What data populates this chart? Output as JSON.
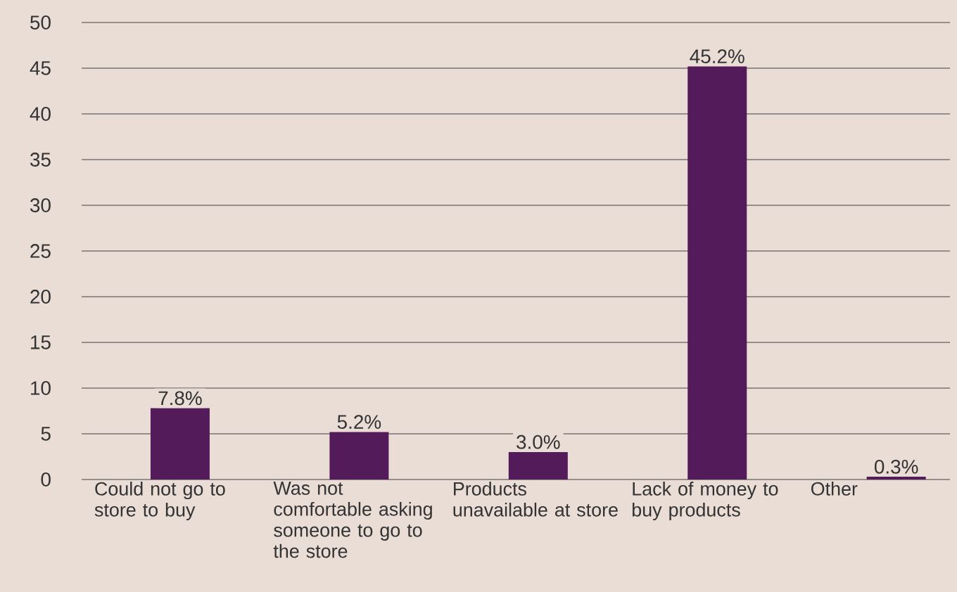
{
  "chart_data": {
    "type": "bar",
    "categories": [
      "Could not go to store to buy",
      "Was not comfortable asking someone to go to the store",
      "Products unavailable at store",
      "Lack of money to buy products",
      "Other"
    ],
    "values": [
      7.8,
      5.2,
      3.0,
      45.2,
      0.3
    ],
    "value_labels": [
      "7.8%",
      "5.2%",
      "3.0%",
      "45.2%",
      "0.3%"
    ],
    "color": "#541b5b",
    "ylim": [
      0,
      50
    ],
    "yticks": [
      0,
      5,
      10,
      15,
      20,
      25,
      30,
      35,
      40,
      45,
      50
    ],
    "grid": "y"
  }
}
